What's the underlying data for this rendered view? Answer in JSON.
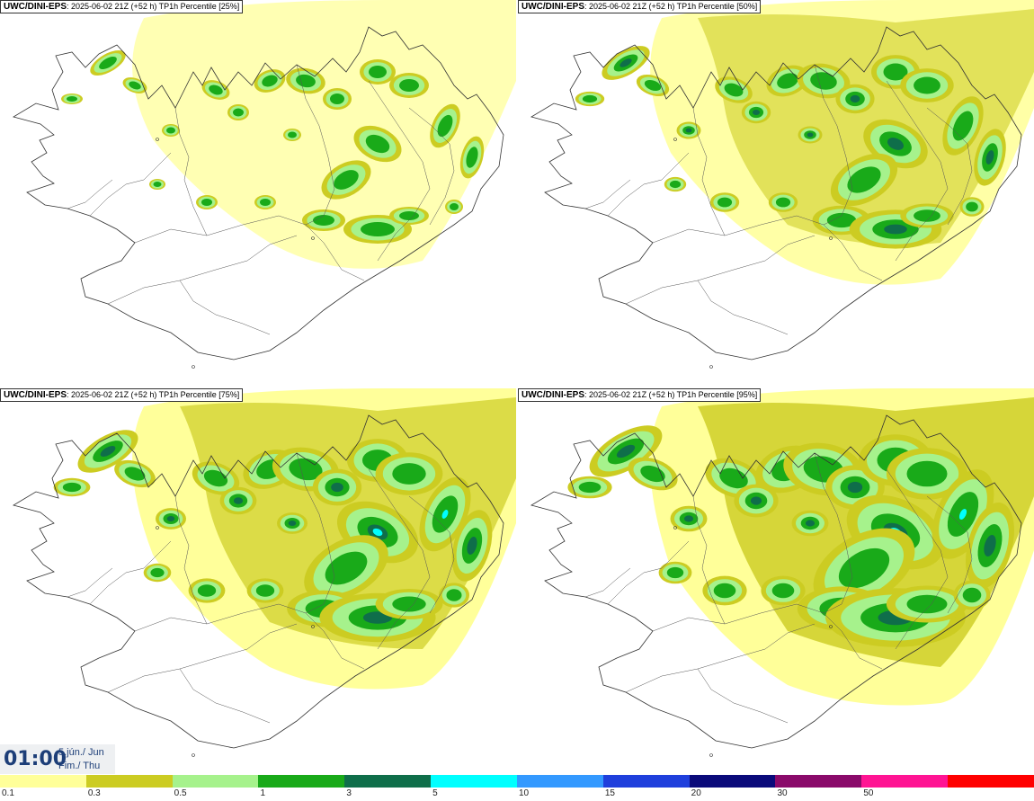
{
  "panels": [
    {
      "model": "UWC/DINI-EPS",
      "run_info": "2025-06-02 21Z (+52 h) TP1h Percentile [25%]",
      "level": 1
    },
    {
      "model": "UWC/DINI-EPS",
      "run_info": "2025-06-02 21Z (+52 h) TP1h Percentile [50%]",
      "level": 2
    },
    {
      "model": "UWC/DINI-EPS",
      "run_info": "2025-06-02 21Z (+52 h) TP1h Percentile [75%]",
      "level": 3
    },
    {
      "model": "UWC/DINI-EPS",
      "run_info": "2025-06-02 21Z (+52 h) TP1h Percentile [95%]",
      "level": 4
    }
  ],
  "valid_time": {
    "time": "01:00",
    "date": "5.jún./ Jun",
    "day": "Fim./ Thu"
  },
  "legend": {
    "colors": [
      "#ffff99",
      "#cccc22",
      "#a6f28c",
      "#19aa19",
      "#0f6e4a",
      "#00ffff",
      "#3399ff",
      "#1f3fdc",
      "#0a0a7a",
      "#8a0a6a",
      "#ff1493",
      "#ff0000"
    ],
    "ticks": [
      "0.1",
      "0.3",
      "0.5",
      "1",
      "3",
      "5",
      "10",
      "15",
      "20",
      "30",
      "50"
    ]
  }
}
